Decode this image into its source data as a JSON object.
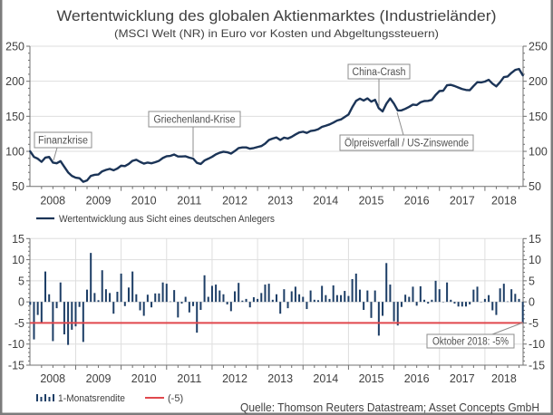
{
  "chart_data": [
    {
      "type": "line",
      "title": "Wertentwicklung des globalen Aktienmarktes (Industrieländer)",
      "subtitle": "(MSCI Welt (NR) in Euro vor Kosten und Abgeltungssteuern)",
      "x_start": "2007-12",
      "x_end": "2018-10",
      "frequency": "monthly",
      "x_tick_labels": [
        "2008",
        "2009",
        "2010",
        "2011",
        "2012",
        "2013",
        "2014",
        "2015",
        "2016",
        "2017",
        "2018"
      ],
      "xlabel": "",
      "ylabel": "",
      "ylim": [
        50,
        250
      ],
      "y_ticks": [
        50,
        100,
        150,
        200,
        250
      ],
      "y_axis_sides": "left-and-right",
      "grid": "horizontal",
      "legend": "bottom-left",
      "series": [
        {
          "name": "Wertentwicklung aus Sicht eines deutschen Anlegers",
          "color": "#1b3457",
          "values": [
            100,
            92,
            89.5,
            85,
            91,
            92,
            84,
            83,
            86,
            78,
            70,
            65,
            62.5,
            61.7,
            56.5,
            58.5,
            65,
            66.5,
            67,
            71.5,
            73.5,
            75,
            73,
            75.5,
            79.5,
            79,
            82,
            86.5,
            88,
            85,
            82.5,
            84,
            83,
            84.5,
            86.5,
            90.5,
            93,
            93.5,
            95.5,
            92.7,
            92.7,
            93,
            91,
            89.7,
            83.6,
            82,
            87,
            89.5,
            92.2,
            95.7,
            98,
            99.5,
            98.7,
            96.8,
            100.5,
            104.7,
            105.6,
            105.6,
            103.8,
            104.7,
            106.2,
            107.5,
            111,
            116.2,
            118.3,
            119.8,
            116.2,
            119.5,
            118.3,
            120.7,
            124,
            127,
            128,
            126.3,
            129,
            129.8,
            131.5,
            134.9,
            136.6,
            138.4,
            141,
            144,
            145.5,
            149,
            152.5,
            163,
            172,
            175.2,
            172.5,
            175.6,
            171,
            173.5,
            161.5,
            157,
            168,
            175.5,
            168,
            158.3,
            158.5,
            160.7,
            163.5,
            166.7,
            166,
            170,
            171.8,
            172,
            173.5,
            180.5,
            186,
            186.5,
            194.4,
            194.9,
            193.2,
            191,
            188.9,
            187.6,
            187.2,
            193.2,
            198.7,
            198.3,
            199.6,
            202.1,
            196.6,
            192.7,
            198.7,
            206,
            206.8,
            212,
            216.2,
            217.5,
            208.5
          ]
        }
      ],
      "annotations": [
        "Finanzkrise",
        "Griechenland-Krise",
        "China-Crash",
        "Ölpreisverfall / US-Zinswende"
      ]
    },
    {
      "type": "bar",
      "x_start": "2007-12",
      "x_end": "2018-10",
      "frequency": "monthly",
      "x_tick_labels": [
        "2008",
        "2009",
        "2010",
        "2011",
        "2012",
        "2013",
        "2014",
        "2015",
        "2016",
        "2017",
        "2018"
      ],
      "xlabel": "",
      "ylabel": "",
      "ylim": [
        -15,
        15
      ],
      "y_ticks": [
        -15,
        -10,
        -5,
        0,
        5,
        10,
        15
      ],
      "y_axis_sides": "left-and-right",
      "grid": "both",
      "legend": "bottom-left",
      "series": [
        {
          "name": "1-Monatsrendite",
          "unit": "%",
          "color": "#1d3e66",
          "values": [
            -0.7,
            -8.9,
            -3.1,
            -4.9,
            7.2,
            1.8,
            -9.3,
            -1.5,
            4.6,
            -7.7,
            -10.2,
            -6.6,
            -5.8,
            -1.2,
            -9.5,
            2.9,
            11.6,
            2.1,
            0.4,
            7.5,
            3.0,
            2.1,
            -2.8,
            2.4,
            6.7,
            -1.0,
            3.4,
            7.2,
            1.8,
            -2.0,
            -3.3,
            1.7,
            -1.3,
            2.0,
            2.0,
            4.6,
            4.3,
            0.1,
            2.8,
            -3.7,
            -0.4,
            1.2,
            -2.5,
            -1.0,
            -7.3,
            -1.9,
            6.3,
            1.2,
            3.8,
            4.1,
            2.7,
            1.8,
            -0.6,
            -2.2,
            2.5,
            4.5,
            0.3,
            0.7,
            -1.3,
            1.1,
            0.7,
            2.1,
            4.1,
            4.3,
            0.5,
            1.8,
            -2.8,
            3.0,
            -1.5,
            2.5,
            3.6,
            1.8,
            1.2,
            -1.7,
            2.7,
            0.5,
            0.4,
            3.8,
            1.6,
            0.7,
            3.9,
            1.6,
            1.6,
            2.6,
            1.4,
            5.4,
            6.7,
            2.9,
            -1.9,
            2.7,
            -3.8,
            2.7,
            -8.0,
            -3.3,
            9.2,
            4.1,
            -4.6,
            -5.6,
            -1.2,
            1.7,
            1.2,
            3.6,
            -0.9,
            3.7,
            0.5,
            -0.4,
            0.5,
            5.0,
            3.0,
            0.0,
            4.6,
            0.5,
            -0.4,
            -1.1,
            -1.1,
            -1.1,
            -0.6,
            2.9,
            3.6,
            0.0,
            0.7,
            1.6,
            -2.0,
            -3.1,
            3.2,
            4.3,
            0.1,
            3.0,
            1.9,
            0.7,
            -5.0
          ]
        }
      ],
      "reference_line": {
        "name": "(-5)",
        "value": -5,
        "color": "#e0484d"
      },
      "annotations": [
        "Oktober 2018: -5%"
      ]
    }
  ],
  "source": "Quelle: Thomson Reuters Datastream; Asset Concepts GmbH"
}
